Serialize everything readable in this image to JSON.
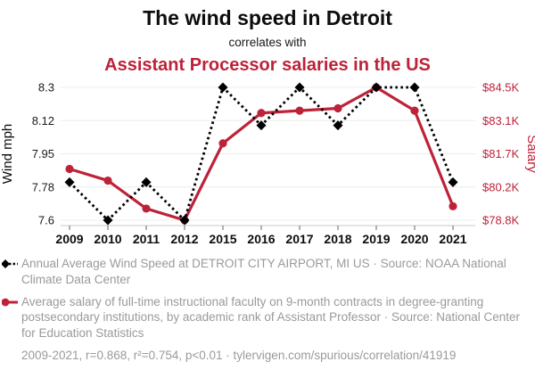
{
  "title": {
    "line1": "The wind speed in Detroit",
    "line2": "correlates with",
    "line3": "Assistant Processor salaries in the US"
  },
  "colors": {
    "red": "#be2239",
    "ink": "#0d0d0d",
    "muted_gray": "#9a9a9a",
    "gridline": "#ececec",
    "axis_line": "#c9c9c9",
    "tick_mark": "#666666"
  },
  "chart_data": {
    "type": "line",
    "x_tick_labels": [
      "2009",
      "2010",
      "2011",
      "2012",
      "2015",
      "2016",
      "2017",
      "2018",
      "2019",
      "2020",
      "2021"
    ],
    "series": [
      {
        "id": "wind-speed",
        "name": "Annual Average Wind Speed at DETROIT CITY AIRPORT, MI US",
        "axis": "left",
        "color": "#000000",
        "line_style": "dashed",
        "marker": "diamond",
        "values": [
          7.8,
          7.6,
          7.8,
          7.6,
          8.3,
          8.1,
          8.3,
          8.1,
          8.3,
          8.3,
          7.8
        ]
      },
      {
        "id": "salary",
        "name": "Average salary of Assistant Professors in the US",
        "axis": "right",
        "color": "#be2239",
        "line_style": "solid",
        "marker": "circle",
        "values": [
          81.0,
          80.5,
          79.3,
          78.8,
          82.1,
          83.4,
          83.5,
          83.6,
          84.5,
          83.5,
          79.4
        ]
      }
    ],
    "left_axis": {
      "label": "Wind mph",
      "min": 7.6,
      "max": 8.3,
      "tick_labels": [
        "8.3",
        "8.12",
        "7.95",
        "7.78",
        "7.6"
      ]
    },
    "right_axis": {
      "label": "Salary",
      "min": 78.8,
      "max": 84.5,
      "tick_labels": [
        "$84.5K",
        "$83.1K",
        "$81.7K",
        "$80.2K",
        "$78.8K"
      ]
    },
    "grid": true,
    "legend_position": "below"
  },
  "legend": [
    {
      "series": "wind-speed",
      "text": "Annual Average Wind Speed at DETROIT CITY AIRPORT, MI US · Source: NOAA National Climate Data Center"
    },
    {
      "series": "salary",
      "text": "Average salary of full-time instructional faculty on 9-month contracts in degree-granting postsecondary institutions, by academic rank of Assistant Professor · Source: National Center for Education Statistics"
    }
  ],
  "footer": {
    "text": "2009-2021, r=0.868, r²=0.754, p<0.01 · tylervigen.com/spurious/correlation/41919"
  }
}
